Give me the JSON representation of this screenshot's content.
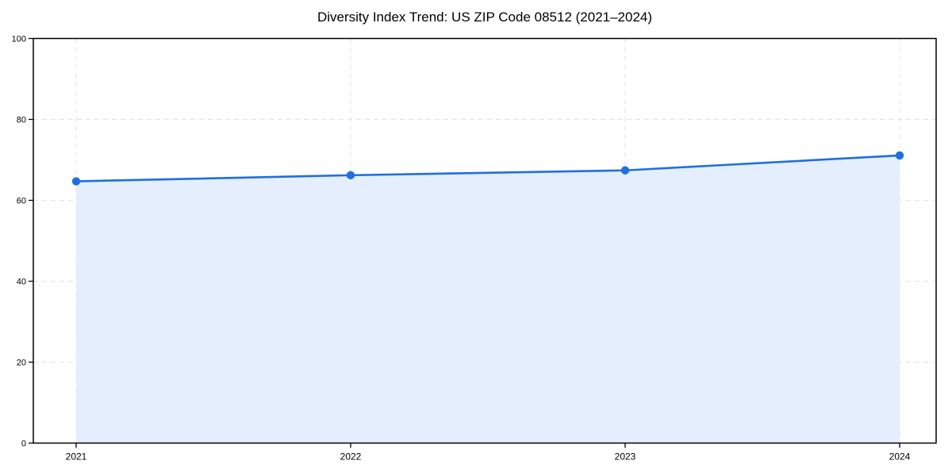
{
  "chart_data": {
    "type": "line",
    "title": "Diversity Index Trend: US ZIP Code 08512 (2021–2024)",
    "categories": [
      "2021",
      "2022",
      "2023",
      "2024"
    ],
    "series": [
      {
        "name": "Diversity Index",
        "values": [
          64.7,
          66.2,
          67.4,
          71.1
        ]
      }
    ],
    "xlabel": "",
    "ylabel": "",
    "ylim": [
      0,
      100
    ],
    "yticks": [
      0,
      20,
      40,
      60,
      80,
      100
    ],
    "grid": "dashed-horizontal-and-vertical",
    "legend": "none",
    "area_fill": true,
    "colors": {
      "line": "#1f6fe0",
      "marker": "#1f6fe0",
      "area_fill": "#e5eefc",
      "grid": "#e2e2e2",
      "axis": "#000000",
      "background": "#ffffff"
    }
  }
}
